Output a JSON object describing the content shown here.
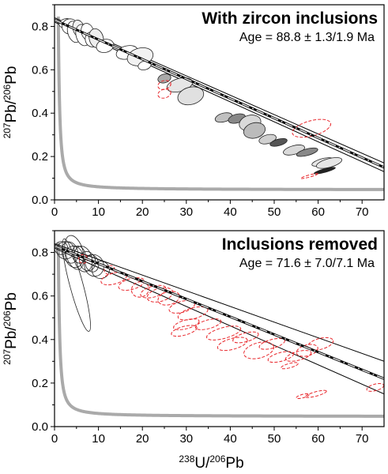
{
  "chart_data": [
    {
      "type": "scatter",
      "title": "With zircon inclusions",
      "annotation": "Age = 88.8 ± 1.3/1.9 Ma",
      "ylabel": {
        "sup1": "207",
        "base1": "Pb/",
        "sup2": "206",
        "base2": "Pb"
      },
      "xlim": [
        0,
        75
      ],
      "ylim": [
        0,
        0.9
      ],
      "xticks": [
        0,
        10,
        20,
        30,
        40,
        50,
        60,
        70
      ],
      "yticks": [
        0.0,
        0.2,
        0.4,
        0.6,
        0.8
      ],
      "ytick_labels": [
        "0.0",
        "0.2",
        "0.4",
        "0.6",
        "0.8"
      ],
      "regression": {
        "x": [
          0,
          75
        ],
        "y": [
          0.83,
          0.15
        ]
      },
      "regression_envelope": {
        "upper": {
          "x": [
            0,
            75
          ],
          "y": [
            0.84,
            0.17
          ]
        },
        "lower": {
          "x": [
            0,
            75
          ],
          "y": [
            0.82,
            0.13
          ]
        }
      },
      "series": [
        {
          "style": "included",
          "points": [
            {
              "x": 2.5,
              "y": 0.815,
              "rx": 1.5,
              "ry": 0.02,
              "fill": "#ffffff"
            },
            {
              "x": 3.5,
              "y": 0.8,
              "rx": 1.8,
              "ry": 0.035,
              "fill": "#ffffff"
            },
            {
              "x": 4.5,
              "y": 0.775,
              "rx": 1.5,
              "ry": 0.05,
              "fill": "#ffffff"
            },
            {
              "x": 5.5,
              "y": 0.79,
              "rx": 1.3,
              "ry": 0.04,
              "fill": "#f2f2f2"
            },
            {
              "x": 6.5,
              "y": 0.76,
              "rx": 1.6,
              "ry": 0.05,
              "fill": "#ffffff"
            },
            {
              "x": 7.5,
              "y": 0.775,
              "rx": 1.4,
              "ry": 0.04,
              "fill": "#ffffff"
            },
            {
              "x": 8.5,
              "y": 0.74,
              "rx": 1.5,
              "ry": 0.035,
              "fill": "#ffffff"
            },
            {
              "x": 9.5,
              "y": 0.745,
              "rx": 1.6,
              "ry": 0.045,
              "fill": "#eeeeee"
            },
            {
              "x": 11.5,
              "y": 0.71,
              "rx": 2.0,
              "ry": 0.03,
              "fill": "#ffffff"
            },
            {
              "x": 16.5,
              "y": 0.68,
              "rx": 2.5,
              "ry": 0.03,
              "fill": "#ffffff"
            },
            {
              "x": 19.5,
              "y": 0.66,
              "rx": 3.0,
              "ry": 0.04,
              "fill": "#f2f2f2"
            },
            {
              "x": 20.5,
              "y": 0.62,
              "rx": 1.5,
              "ry": 0.02,
              "fill": "#ffffff"
            },
            {
              "x": 25.0,
              "y": 0.56,
              "rx": 1.5,
              "ry": 0.02,
              "fill": "#aaaaaa"
            },
            {
              "x": 28.5,
              "y": 0.53,
              "rx": 3.0,
              "ry": 0.03,
              "fill": "#e6e6e6"
            },
            {
              "x": 31.0,
              "y": 0.48,
              "rx": 3.0,
              "ry": 0.04,
              "fill": "#e0e0e0"
            },
            {
              "x": 38.5,
              "y": 0.38,
              "rx": 2.0,
              "ry": 0.02,
              "fill": "#c0c0c0"
            },
            {
              "x": 41.5,
              "y": 0.375,
              "rx": 2.0,
              "ry": 0.02,
              "fill": "#888888"
            },
            {
              "x": 44.5,
              "y": 0.355,
              "rx": 2.5,
              "ry": 0.035,
              "fill": "#d9d9d9"
            },
            {
              "x": 45.5,
              "y": 0.32,
              "rx": 2.5,
              "ry": 0.035,
              "fill": "#bbbbbb"
            },
            {
              "x": 48.5,
              "y": 0.28,
              "rx": 2.0,
              "ry": 0.02,
              "fill": "#d0d0d0"
            },
            {
              "x": 51.0,
              "y": 0.265,
              "rx": 2.0,
              "ry": 0.015,
              "fill": "#555555"
            },
            {
              "x": 54.5,
              "y": 0.23,
              "rx": 2.5,
              "ry": 0.02,
              "fill": "#d9d9d9"
            },
            {
              "x": 57.5,
              "y": 0.22,
              "rx": 2.5,
              "ry": 0.015,
              "fill": "#888888"
            },
            {
              "x": 61.0,
              "y": 0.175,
              "rx": 2.5,
              "ry": 0.015,
              "fill": "#e6e6e6"
            },
            {
              "x": 62.5,
              "y": 0.17,
              "rx": 3.0,
              "ry": 0.02,
              "fill": "#e6e6e6"
            },
            {
              "x": 61.5,
              "y": 0.135,
              "rx": 2.5,
              "ry": 0.008,
              "fill": "#222222"
            }
          ]
        },
        {
          "style": "excluded",
          "points": [
            {
              "x": 25.0,
              "y": 0.53,
              "rx": 1.5,
              "ry": 0.02
            },
            {
              "x": 25.0,
              "y": 0.49,
              "rx": 1.5,
              "ry": 0.02
            },
            {
              "x": 58.5,
              "y": 0.33,
              "rx": 4.5,
              "ry": 0.035
            },
            {
              "x": 58.0,
              "y": 0.11,
              "rx": 2.0,
              "ry": 0.005
            }
          ]
        }
      ],
      "concordia_color": "#aaaaaa"
    },
    {
      "type": "scatter",
      "title": "Inclusions removed",
      "annotation": "Age = 71.6 ± 7.0/7.1 Ma",
      "ylabel": {
        "sup1": "207",
        "base1": "Pb/",
        "sup2": "206",
        "base2": "Pb"
      },
      "xlabel": {
        "sup1": "238",
        "base1": "U/",
        "sup2": "206",
        "base2": "Pb"
      },
      "xlim": [
        0,
        75
      ],
      "ylim": [
        0,
        0.9
      ],
      "xticks": [
        0,
        10,
        20,
        30,
        40,
        50,
        60,
        70
      ],
      "yticks": [
        0.0,
        0.2,
        0.4,
        0.6,
        0.8
      ],
      "ytick_labels": [
        "0.0",
        "0.2",
        "0.4",
        "0.6",
        "0.8"
      ],
      "regression": {
        "x": [
          0,
          75
        ],
        "y": [
          0.83,
          0.22
        ]
      },
      "regression_envelope": {
        "upper": {
          "x": [
            0,
            75
          ],
          "y": [
            0.84,
            0.3
          ]
        },
        "lower": {
          "x": [
            0,
            75
          ],
          "y": [
            0.82,
            0.15
          ]
        }
      },
      "series": [
        {
          "style": "included",
          "points": [
            {
              "x": 1.5,
              "y": 0.82,
              "rx": 1.5,
              "ry": 0.03
            },
            {
              "x": 2.5,
              "y": 0.81,
              "rx": 2.0,
              "ry": 0.04
            },
            {
              "x": 3.5,
              "y": 0.8,
              "rx": 1.8,
              "ry": 0.05
            },
            {
              "x": 4.5,
              "y": 0.78,
              "rx": 2.0,
              "ry": 0.05
            },
            {
              "x": 5.5,
              "y": 0.79,
              "rx": 1.5,
              "ry": 0.04
            },
            {
              "x": 6.5,
              "y": 0.77,
              "rx": 2.0,
              "ry": 0.06
            },
            {
              "x": 7.5,
              "y": 0.76,
              "rx": 1.8,
              "ry": 0.045
            },
            {
              "x": 8.5,
              "y": 0.75,
              "rx": 1.5,
              "ry": 0.04
            },
            {
              "x": 9.0,
              "y": 0.74,
              "rx": 2.2,
              "ry": 0.05
            },
            {
              "x": 10.5,
              "y": 0.72,
              "rx": 2.0,
              "ry": 0.04
            },
            {
              "x": 5.0,
              "y": 0.65,
              "rx": 1.5,
              "ry": 0.22
            },
            {
              "x": 4.5,
              "y": 0.8,
              "rx": 2.0,
              "ry": 0.08
            }
          ]
        },
        {
          "style": "excluded",
          "points": [
            {
              "x": 6.5,
              "y": 0.77,
              "rx": 1.0,
              "ry": 0.02
            },
            {
              "x": 12.5,
              "y": 0.72,
              "rx": 1.2,
              "ry": 0.02
            },
            {
              "x": 13.5,
              "y": 0.68,
              "rx": 3.0,
              "ry": 0.025
            },
            {
              "x": 17.5,
              "y": 0.655,
              "rx": 3.0,
              "ry": 0.025
            },
            {
              "x": 19.5,
              "y": 0.63,
              "rx": 2.0,
              "ry": 0.035
            },
            {
              "x": 22.5,
              "y": 0.62,
              "rx": 3.0,
              "ry": 0.025
            },
            {
              "x": 24.0,
              "y": 0.605,
              "rx": 3.0,
              "ry": 0.03
            },
            {
              "x": 26.0,
              "y": 0.59,
              "rx": 2.5,
              "ry": 0.03
            },
            {
              "x": 29.0,
              "y": 0.55,
              "rx": 3.0,
              "ry": 0.025
            },
            {
              "x": 31.5,
              "y": 0.52,
              "rx": 3.5,
              "ry": 0.025
            },
            {
              "x": 30.0,
              "y": 0.47,
              "rx": 3.0,
              "ry": 0.02
            },
            {
              "x": 35.0,
              "y": 0.47,
              "rx": 3.0,
              "ry": 0.02
            },
            {
              "x": 29.5,
              "y": 0.44,
              "rx": 3.0,
              "ry": 0.02
            },
            {
              "x": 38.5,
              "y": 0.43,
              "rx": 4.0,
              "ry": 0.025
            },
            {
              "x": 40.5,
              "y": 0.38,
              "rx": 3.5,
              "ry": 0.025
            },
            {
              "x": 43.5,
              "y": 0.41,
              "rx": 3.0,
              "ry": 0.02
            },
            {
              "x": 46.5,
              "y": 0.35,
              "rx": 3.5,
              "ry": 0.035
            },
            {
              "x": 49.5,
              "y": 0.38,
              "rx": 3.0,
              "ry": 0.02
            },
            {
              "x": 51.5,
              "y": 0.32,
              "rx": 3.0,
              "ry": 0.02
            },
            {
              "x": 53.5,
              "y": 0.28,
              "rx": 2.0,
              "ry": 0.01
            },
            {
              "x": 55.5,
              "y": 0.325,
              "rx": 3.0,
              "ry": 0.02
            },
            {
              "x": 57.5,
              "y": 0.35,
              "rx": 2.5,
              "ry": 0.025
            },
            {
              "x": 60.5,
              "y": 0.38,
              "rx": 3.0,
              "ry": 0.025
            },
            {
              "x": 59.5,
              "y": 0.15,
              "rx": 2.5,
              "ry": 0.01
            },
            {
              "x": 56.5,
              "y": 0.14,
              "rx": 1.5,
              "ry": 0.008
            },
            {
              "x": 73.0,
              "y": 0.18,
              "rx": 2.0,
              "ry": 0.015
            }
          ]
        }
      ],
      "concordia_color": "#aaaaaa"
    }
  ]
}
